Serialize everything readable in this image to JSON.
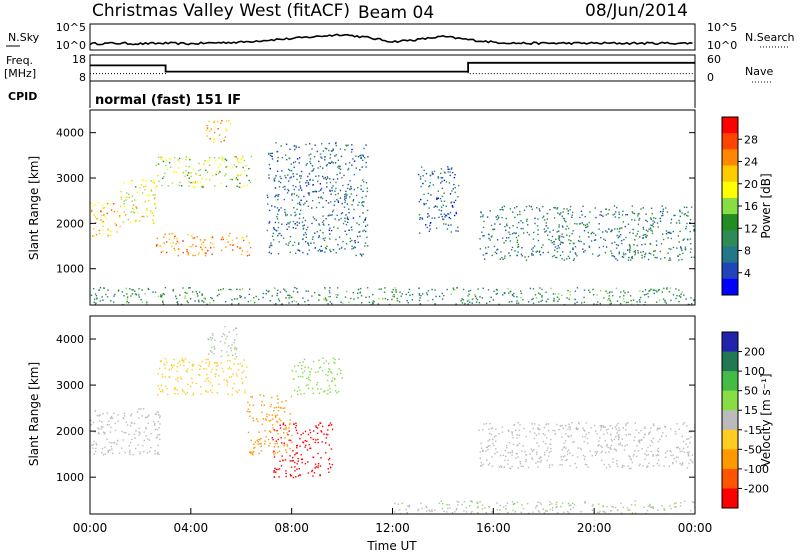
{
  "header": {
    "station": "Christmas Valley West (fitACF)",
    "beam": "Beam 04",
    "date": "08/Jun/2014"
  },
  "nsky_panel": {
    "label": "N.Sky",
    "ticks": [
      "10^5",
      "10^0"
    ],
    "right_label": "N.Search",
    "right_ticks": [
      "10^5",
      "10^0"
    ]
  },
  "freq_panel": {
    "label_line1": "Freq.",
    "label_line2": "[MHz]",
    "ticks": [
      "18",
      "8"
    ],
    "right_label": "Nave",
    "right_ticks": [
      "60",
      "0"
    ]
  },
  "cpid": {
    "label": "CPID",
    "mode": "normal (fast) 151 IF"
  },
  "power_scale": {
    "title": "Power [dB]",
    "ticks": [
      "28",
      "24",
      "20",
      "16",
      "12",
      "8",
      "4"
    ],
    "colors": [
      "#ff0000",
      "#ff4400",
      "#ff8800",
      "#ffcc00",
      "#ffff00",
      "#88dd44",
      "#228b22",
      "#2e8b57",
      "#227788",
      "#2244bb",
      "#0000ff"
    ]
  },
  "velocity_scale": {
    "title": "Velocity [m s⁻¹]",
    "ticks": [
      "200",
      "100",
      "50",
      "15",
      "-15",
      "-50",
      "-100",
      "-200"
    ],
    "colors": [
      "#2222aa",
      "#227755",
      "#44bb44",
      "#88dd44",
      "#bbbbbb",
      "#ffcc22",
      "#ff9900",
      "#ff5500",
      "#ff0000"
    ]
  },
  "axes": {
    "ylabel": "Slant Range [km]",
    "yticks": [
      "4000",
      "3000",
      "2000",
      "1000"
    ],
    "xticks": [
      "00:00",
      "04:00",
      "08:00",
      "12:00",
      "16:00",
      "20:00",
      "00:00"
    ],
    "xlabel": "Time UT"
  },
  "chart_data": [
    {
      "type": "line",
      "title": "N.Sky",
      "x_unit": "hours UT",
      "x": [
        0,
        1,
        2,
        3,
        4,
        5,
        6,
        7,
        8,
        9,
        10,
        11,
        12,
        13,
        14,
        15,
        16,
        17,
        18,
        19,
        20,
        21,
        22,
        23,
        24
      ],
      "series": [
        {
          "values": [
            1.2,
            1.3,
            1.2,
            1.3,
            1.2,
            1.4,
            1.5,
            1.9,
            2.2,
            2.6,
            3.0,
            2.4,
            1.6,
            2.0,
            2.6,
            2.0,
            1.5,
            1.3,
            1.3,
            1.3,
            1.3,
            1.3,
            1.3,
            1.3,
            1.3
          ]
        }
      ],
      "ylim": [
        "10^0",
        "10^5"
      ]
    },
    {
      "type": "line",
      "title": "Freq. [MHz] / Nave",
      "x_unit": "hours UT",
      "series": [
        {
          "values_by_interval": [
            [
              0,
              3,
              14
            ],
            [
              3,
              15,
              11.6
            ],
            [
              15,
              24,
              15
            ]
          ],
          "ylim": [
            8,
            18
          ]
        },
        {
          "values_by_interval": [
            [
              0,
              3,
              17
            ],
            [
              3,
              15,
              22
            ],
            [
              15,
              24,
              17
            ]
          ],
          "ylim": [
            0,
            60
          ]
        }
      ]
    },
    {
      "type": "heatmap",
      "title": "Power [dB]",
      "x_range_hours_UT": [
        0,
        24
      ],
      "y_range_km": [
        200,
        4500
      ],
      "z_range_dB": [
        0,
        30
      ],
      "regions": [
        {
          "t_start": 0.0,
          "t_end": 1.2,
          "r_start": 1700,
          "r_end": 2500,
          "level_dB": 22
        },
        {
          "t_start": 1.2,
          "t_end": 2.6,
          "r_start": 2000,
          "r_end": 3000,
          "level_dB": 18
        },
        {
          "t_start": 2.6,
          "t_end": 6.4,
          "r_start": 1300,
          "r_end": 1800,
          "level_dB": 24
        },
        {
          "t_start": 2.6,
          "t_end": 6.4,
          "r_start": 2800,
          "r_end": 3500,
          "level_dB": 16
        },
        {
          "t_start": 4.6,
          "t_end": 5.6,
          "r_start": 3800,
          "r_end": 4300,
          "level_dB": 22
        },
        {
          "t_start": 7.0,
          "t_end": 11.0,
          "r_start": 1300,
          "r_end": 3800,
          "level_dB": 6
        },
        {
          "t_start": 13.0,
          "t_end": 14.6,
          "r_start": 1800,
          "r_end": 3300,
          "level_dB": 5
        },
        {
          "t_start": 15.4,
          "t_end": 24.0,
          "r_start": 1200,
          "r_end": 2400,
          "level_dB": 8
        },
        {
          "t_start": 0.0,
          "t_end": 24.0,
          "r_start": 200,
          "r_end": 600,
          "level_dB": 10
        }
      ]
    },
    {
      "type": "heatmap",
      "title": "Velocity [m s-1]",
      "x_range_hours_UT": [
        0,
        24
      ],
      "y_range_km": [
        200,
        4500
      ],
      "z_range_m_s": [
        -200,
        200
      ],
      "regions": [
        {
          "t_start": 0.0,
          "t_end": 2.8,
          "r_start": 1500,
          "r_end": 2500,
          "velocity": 0
        },
        {
          "t_start": 2.6,
          "t_end": 6.2,
          "r_start": 2800,
          "r_end": 3600,
          "velocity": -50
        },
        {
          "t_start": 4.6,
          "t_end": 5.8,
          "r_start": 3600,
          "r_end": 4300,
          "velocity": 15
        },
        {
          "t_start": 6.2,
          "t_end": 8.0,
          "r_start": 1500,
          "r_end": 2800,
          "velocity": -100
        },
        {
          "t_start": 7.2,
          "t_end": 9.6,
          "r_start": 1000,
          "r_end": 2200,
          "velocity": -200
        },
        {
          "t_start": 8.0,
          "t_end": 10.0,
          "r_start": 2800,
          "r_end": 3600,
          "velocity": 50
        },
        {
          "t_start": 15.4,
          "t_end": 24.0,
          "r_start": 1200,
          "r_end": 2200,
          "velocity": 0
        },
        {
          "t_start": 12.0,
          "t_end": 24.0,
          "r_start": 200,
          "r_end": 500,
          "velocity": 15
        }
      ]
    }
  ]
}
